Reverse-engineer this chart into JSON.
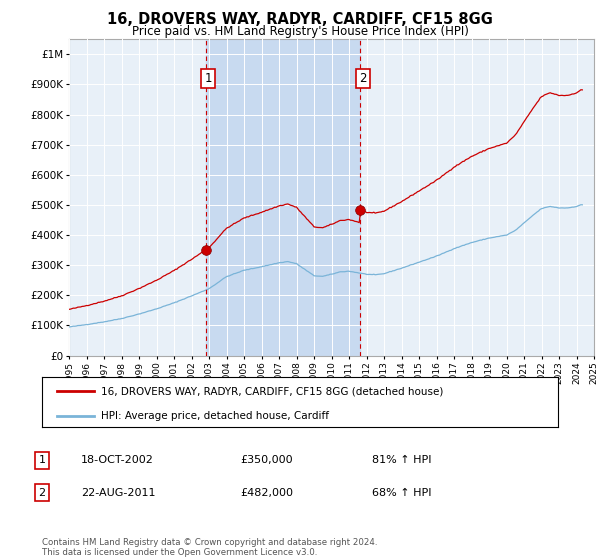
{
  "title": "16, DROVERS WAY, RADYR, CARDIFF, CF15 8GG",
  "subtitle": "Price paid vs. HM Land Registry's House Price Index (HPI)",
  "background_color": "#e8f0f8",
  "plot_bg_color": "#e8f0f8",
  "shaded_region_color": "#c8daf0",
  "hpi_color": "#7ab4d8",
  "price_color": "#cc0000",
  "marker_color": "#cc0000",
  "dashed_line_color": "#cc0000",
  "ylim_min": 0,
  "ylim_max": 1050000,
  "yticks": [
    0,
    100000,
    200000,
    300000,
    400000,
    500000,
    600000,
    700000,
    800000,
    900000,
    1000000
  ],
  "ytick_labels": [
    "£0",
    "£100K",
    "£200K",
    "£300K",
    "£400K",
    "£500K",
    "£600K",
    "£700K",
    "£800K",
    "£900K",
    "£1M"
  ],
  "xmin_year": 1995,
  "xmax_year": 2025,
  "xtick_years": [
    1995,
    1996,
    1997,
    1998,
    1999,
    2000,
    2001,
    2002,
    2003,
    2004,
    2005,
    2006,
    2007,
    2008,
    2009,
    2010,
    2011,
    2012,
    2013,
    2014,
    2015,
    2016,
    2017,
    2018,
    2019,
    2020,
    2021,
    2022,
    2023,
    2024,
    2025
  ],
  "transaction1_x": 2002.8,
  "transaction1_y": 350000,
  "transaction1_label": "1",
  "transaction2_x": 2011.65,
  "transaction2_y": 482000,
  "transaction2_label": "2",
  "legend_line1": "16, DROVERS WAY, RADYR, CARDIFF, CF15 8GG (detached house)",
  "legend_line2": "HPI: Average price, detached house, Cardiff",
  "table_row1_num": "1",
  "table_row1_date": "18-OCT-2002",
  "table_row1_price": "£350,000",
  "table_row1_hpi": "81% ↑ HPI",
  "table_row2_num": "2",
  "table_row2_date": "22-AUG-2011",
  "table_row2_price": "£482,000",
  "table_row2_hpi": "68% ↑ HPI",
  "footer": "Contains HM Land Registry data © Crown copyright and database right 2024.\nThis data is licensed under the Open Government Licence v3.0."
}
